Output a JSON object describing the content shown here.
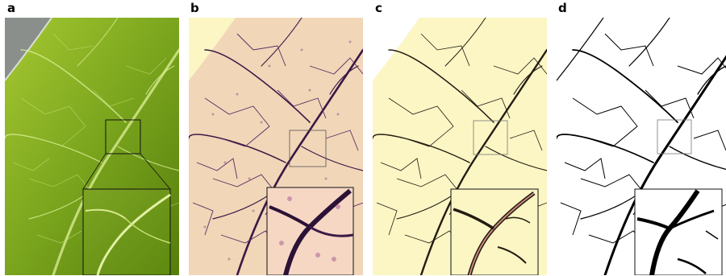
{
  "figure": {
    "panels": [
      {
        "label": "a",
        "content": "leaf-photo"
      },
      {
        "label": "b",
        "content": "stained-venation"
      },
      {
        "label": "c",
        "content": "vein-outline-tracing"
      },
      {
        "label": "d",
        "content": "binary-venation-skeleton"
      }
    ]
  },
  "colors": {
    "leaf_green_dark": "#5e8a10",
    "leaf_green_light": "#93bb2a",
    "vein_light": "#e8f3a0",
    "background_gray": "#8a8f8c",
    "stain_bg": "#f1d6b8",
    "stain_vein": "#3a1845",
    "stain_dots": "#9b5a87",
    "cream_bg": "#fbf6c4",
    "vein_dark": "#231b12",
    "black": "#000000",
    "white": "#ffffff"
  }
}
